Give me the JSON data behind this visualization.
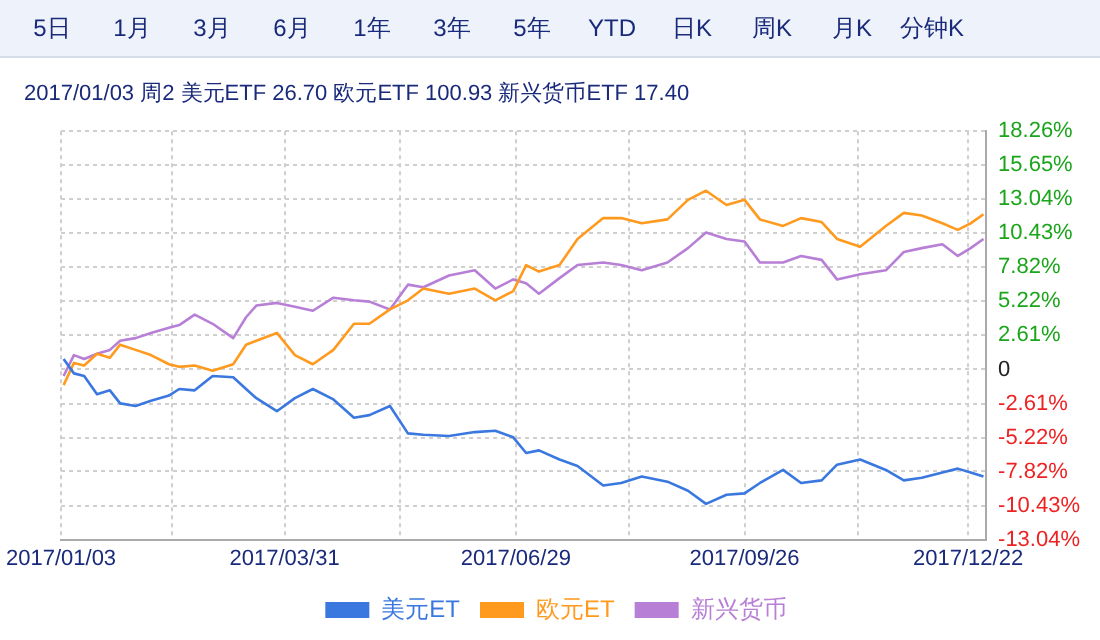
{
  "chart_data": {
    "type": "line",
    "subtitle": "2017/01/03 周2 美元ETF 26.70 欧元ETF 100.93 新兴货币ETF 17.40",
    "annotations": [
      "5日",
      "1月",
      "3月",
      "6月",
      "1年",
      "3年",
      "5年",
      "YTD",
      "日K",
      "周K",
      "月K",
      "分钟K"
    ],
    "x": [
      "2017-01-04",
      "2017-01-08",
      "2017-01-12",
      "2017-01-17",
      "2017-01-22",
      "2017-01-26",
      "2017-02-01",
      "2017-02-07",
      "2017-02-14",
      "2017-02-18",
      "2017-02-24",
      "2017-03-03",
      "2017-03-11",
      "2017-03-16",
      "2017-03-20",
      "2017-03-28",
      "2017-04-04",
      "2017-04-11",
      "2017-04-19",
      "2017-04-27",
      "2017-05-03",
      "2017-05-11",
      "2017-05-18",
      "2017-05-24",
      "2017-06-03",
      "2017-06-13",
      "2017-06-21",
      "2017-06-28",
      "2017-07-03",
      "2017-07-08",
      "2017-07-16",
      "2017-07-23",
      "2017-08-02",
      "2017-08-09",
      "2017-08-17",
      "2017-08-27",
      "2017-09-04",
      "2017-09-11",
      "2017-09-19",
      "2017-09-26",
      "2017-10-02",
      "2017-10-11",
      "2017-10-18",
      "2017-10-26",
      "2017-11-01",
      "2017-11-10",
      "2017-11-20",
      "2017-11-27",
      "2017-12-04",
      "2017-12-12",
      "2017-12-18",
      "2017-12-23",
      "2017-12-28"
    ],
    "series": [
      {
        "name": "美元ET",
        "color": "#3a78e0",
        "values": [
          0.8,
          -0.3,
          -0.5,
          -1.9,
          -1.6,
          -2.6,
          -2.8,
          -2.4,
          -2.0,
          -1.5,
          -1.6,
          -0.5,
          -0.6,
          -1.5,
          -2.2,
          -3.2,
          -2.2,
          -1.5,
          -2.3,
          -3.7,
          -3.5,
          -2.8,
          -4.9,
          -5.0,
          -5.1,
          -4.8,
          -4.7,
          -5.2,
          -6.4,
          -6.2,
          -6.9,
          -7.4,
          -8.9,
          -8.7,
          -8.2,
          -8.6,
          -9.3,
          -10.3,
          -9.6,
          -9.5,
          -8.7,
          -7.7,
          -8.7,
          -8.5,
          -7.3,
          -6.9,
          -7.7,
          -8.5,
          -8.3,
          -7.9,
          -7.6,
          -7.9,
          -8.2
        ]
      },
      {
        "name": "欧元ET",
        "color": "#ff9a1e",
        "values": [
          -1.2,
          0.5,
          0.3,
          1.2,
          0.9,
          1.9,
          1.5,
          1.1,
          0.4,
          0.2,
          0.3,
          -0.1,
          0.4,
          1.9,
          2.2,
          2.8,
          1.1,
          0.4,
          1.5,
          3.5,
          3.5,
          4.6,
          5.3,
          6.2,
          5.8,
          6.2,
          5.3,
          6.0,
          8.0,
          7.5,
          8.0,
          10.0,
          11.6,
          11.6,
          11.2,
          11.5,
          13.0,
          13.7,
          12.6,
          13.0,
          11.5,
          11.0,
          11.6,
          11.3,
          10.0,
          9.4,
          11.0,
          12.0,
          11.8,
          11.2,
          10.7,
          11.2,
          11.9
        ]
      },
      {
        "name": "新兴货币",
        "color": "#b77fd6",
        "values": [
          -0.5,
          1.1,
          0.8,
          1.2,
          1.5,
          2.2,
          2.4,
          2.8,
          3.2,
          3.4,
          4.2,
          3.5,
          2.4,
          4.0,
          4.9,
          5.1,
          4.8,
          4.5,
          5.5,
          5.3,
          5.2,
          4.6,
          6.5,
          6.3,
          7.2,
          7.6,
          6.2,
          6.9,
          6.6,
          5.8,
          7.0,
          8.0,
          8.2,
          8.0,
          7.6,
          8.2,
          9.3,
          10.5,
          10.0,
          9.8,
          8.2,
          8.2,
          8.7,
          8.4,
          6.9,
          7.3,
          7.6,
          9.0,
          9.3,
          9.6,
          8.7,
          9.3,
          10.0
        ]
      }
    ],
    "xlim": [
      "2017-01-03",
      "2017-12-29"
    ],
    "xticks": [
      {
        "value": "2017-01-03",
        "label": "2017/01/03"
      },
      {
        "value": "2017-02-15",
        "label": null
      },
      {
        "value": "2017-03-31",
        "label": "2017/03/31"
      },
      {
        "value": "2017-05-15",
        "label": null
      },
      {
        "value": "2017-06-29",
        "label": "2017/06/29"
      },
      {
        "value": "2017-08-12",
        "label": null
      },
      {
        "value": "2017-09-26",
        "label": "2017/09/26"
      },
      {
        "value": "2017-11-09",
        "label": null
      },
      {
        "value": "2017-12-22",
        "label": "2017/12/22"
      }
    ],
    "ylim": [
      -13.04,
      18.26
    ],
    "yticks": [
      {
        "value": -13.04,
        "label": "-13.04%"
      },
      {
        "value": -10.43,
        "label": "-10.43%"
      },
      {
        "value": -7.82,
        "label": "-7.82%"
      },
      {
        "value": -5.22,
        "label": "-5.22%"
      },
      {
        "value": -2.61,
        "label": "-2.61%"
      },
      0,
      {
        "value": 2.61,
        "label": "2.61%"
      },
      {
        "value": 5.22,
        "label": "5.22%"
      },
      {
        "value": 7.82,
        "label": "7.82%"
      },
      {
        "value": 10.43,
        "label": "10.43%"
      },
      {
        "value": 13.04,
        "label": "13.04%"
      },
      {
        "value": 15.65,
        "label": "15.65%"
      },
      {
        "value": 18.26,
        "label": "18.26%"
      }
    ],
    "grid": true,
    "legend": "bottom",
    "marker": "none",
    "line_style": "solid"
  }
}
